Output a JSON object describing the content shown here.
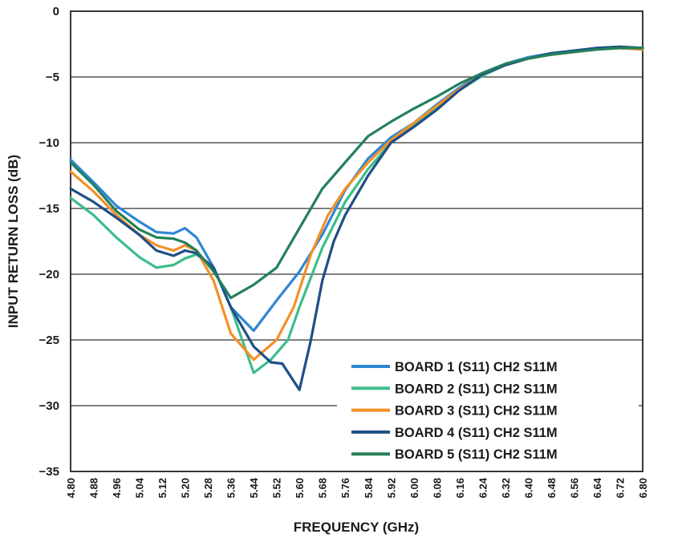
{
  "chart_data": {
    "type": "line",
    "xlabel": "FREQUENCY (GHz)",
    "ylabel": "INPUT RETURN LOSS (dB)",
    "xlim": [
      4.8,
      6.8
    ],
    "ylim": [
      -35,
      0
    ],
    "x_ticks": [
      "4.80",
      "4.88",
      "4.96",
      "5.04",
      "5.12",
      "5.20",
      "5.28",
      "5.36",
      "5.44",
      "5.52",
      "5.60",
      "5.68",
      "5.76",
      "5.84",
      "5.92",
      "6.00",
      "6.08",
      "6.16",
      "6.24",
      "6.32",
      "6.40",
      "6.48",
      "6.56",
      "6.64",
      "6.72",
      "6.80"
    ],
    "y_ticks": [
      "0",
      "−5",
      "−10",
      "−15",
      "−20",
      "−25",
      "−30",
      "−35"
    ],
    "y_tick_values": [
      0,
      -5,
      -10,
      -15,
      -20,
      -25,
      -30,
      -35
    ],
    "grid": "horizontal",
    "legend_position": "bottom-right",
    "series": [
      {
        "name": "BOARD 1 (S11) CH2 S11M",
        "color": "#2f86d6",
        "x": [
          4.8,
          4.88,
          4.96,
          5.04,
          5.1,
          5.16,
          5.2,
          5.24,
          5.3,
          5.36,
          5.44,
          5.52,
          5.6,
          5.68,
          5.76,
          5.84,
          5.92,
          6.0,
          6.08,
          6.16,
          6.24,
          6.32,
          6.4,
          6.48,
          6.56,
          6.64,
          6.72,
          6.8
        ],
        "y": [
          -11.3,
          -13.0,
          -14.8,
          -16.0,
          -16.8,
          -16.9,
          -16.5,
          -17.2,
          -19.5,
          -22.5,
          -24.3,
          -22.0,
          -19.8,
          -17.0,
          -13.6,
          -11.2,
          -9.6,
          -8.5,
          -7.1,
          -5.8,
          -4.7,
          -4.0,
          -3.5,
          -3.2,
          -3.0,
          -2.8,
          -2.7,
          -2.8
        ]
      },
      {
        "name": "BOARD 2 (S11) CH2 S11M",
        "color": "#3dbd8a",
        "x": [
          4.8,
          4.88,
          4.96,
          5.04,
          5.1,
          5.16,
          5.2,
          5.24,
          5.3,
          5.36,
          5.44,
          5.5,
          5.56,
          5.6,
          5.68,
          5.76,
          5.84,
          5.92,
          6.0,
          6.08,
          6.16,
          6.24,
          6.32,
          6.4,
          6.48,
          6.56,
          6.64,
          6.72,
          6.8
        ],
        "y": [
          -14.2,
          -15.5,
          -17.2,
          -18.7,
          -19.5,
          -19.3,
          -18.8,
          -18.5,
          -19.5,
          -22.5,
          -27.5,
          -26.5,
          -25.0,
          -22.5,
          -18.0,
          -14.5,
          -12.0,
          -10.0,
          -8.7,
          -7.3,
          -6.0,
          -4.9,
          -4.1,
          -3.6,
          -3.3,
          -3.1,
          -2.9,
          -2.8,
          -2.9
        ]
      },
      {
        "name": "BOARD 3 (S11) CH2 S11M",
        "color": "#f39026",
        "x": [
          4.8,
          4.88,
          4.96,
          5.04,
          5.1,
          5.16,
          5.2,
          5.24,
          5.3,
          5.36,
          5.44,
          5.52,
          5.58,
          5.64,
          5.7,
          5.76,
          5.84,
          5.92,
          6.0,
          6.08,
          6.16,
          6.24,
          6.32,
          6.4,
          6.48,
          6.56,
          6.64,
          6.72,
          6.8
        ],
        "y": [
          -12.2,
          -13.7,
          -15.5,
          -17.0,
          -17.8,
          -18.2,
          -17.8,
          -18.2,
          -20.5,
          -24.5,
          -26.5,
          -25.0,
          -22.5,
          -18.5,
          -15.5,
          -13.5,
          -11.5,
          -9.8,
          -8.5,
          -7.2,
          -5.9,
          -4.8,
          -4.1,
          -3.6,
          -3.3,
          -3.1,
          -2.9,
          -2.8,
          -2.9
        ]
      },
      {
        "name": "BOARD 4 (S11) CH2 S11M",
        "color": "#1f4f86",
        "x": [
          4.8,
          4.88,
          4.96,
          5.04,
          5.1,
          5.16,
          5.2,
          5.24,
          5.3,
          5.36,
          5.44,
          5.5,
          5.54,
          5.6,
          5.64,
          5.68,
          5.72,
          5.76,
          5.84,
          5.92,
          6.0,
          6.08,
          6.16,
          6.24,
          6.32,
          6.4,
          6.48,
          6.56,
          6.64,
          6.72,
          6.8
        ],
        "y": [
          -13.5,
          -14.5,
          -15.7,
          -17.0,
          -18.2,
          -18.6,
          -18.2,
          -18.4,
          -19.5,
          -22.5,
          -25.5,
          -26.7,
          -26.8,
          -28.8,
          -25.0,
          -20.5,
          -17.5,
          -15.5,
          -12.5,
          -10.0,
          -8.8,
          -7.5,
          -6.0,
          -4.8,
          -4.1,
          -3.6,
          -3.2,
          -3.0,
          -2.8,
          -2.7,
          -2.8
        ]
      },
      {
        "name": "BOARD 5 (S11) CH2 S11M",
        "color": "#23805a",
        "x": [
          4.8,
          4.88,
          4.96,
          5.04,
          5.1,
          5.16,
          5.2,
          5.24,
          5.3,
          5.36,
          5.44,
          5.52,
          5.6,
          5.68,
          5.76,
          5.84,
          5.92,
          6.0,
          6.08,
          6.16,
          6.24,
          6.32,
          6.4,
          6.48,
          6.56,
          6.64,
          6.72,
          6.8
        ],
        "y": [
          -11.5,
          -13.2,
          -15.2,
          -16.6,
          -17.2,
          -17.3,
          -17.6,
          -18.2,
          -19.8,
          -21.8,
          -20.8,
          -19.5,
          -16.5,
          -13.5,
          -11.5,
          -9.5,
          -8.4,
          -7.4,
          -6.5,
          -5.5,
          -4.7,
          -4.0,
          -3.6,
          -3.3,
          -3.1,
          -2.9,
          -2.8,
          -2.8
        ]
      }
    ]
  }
}
